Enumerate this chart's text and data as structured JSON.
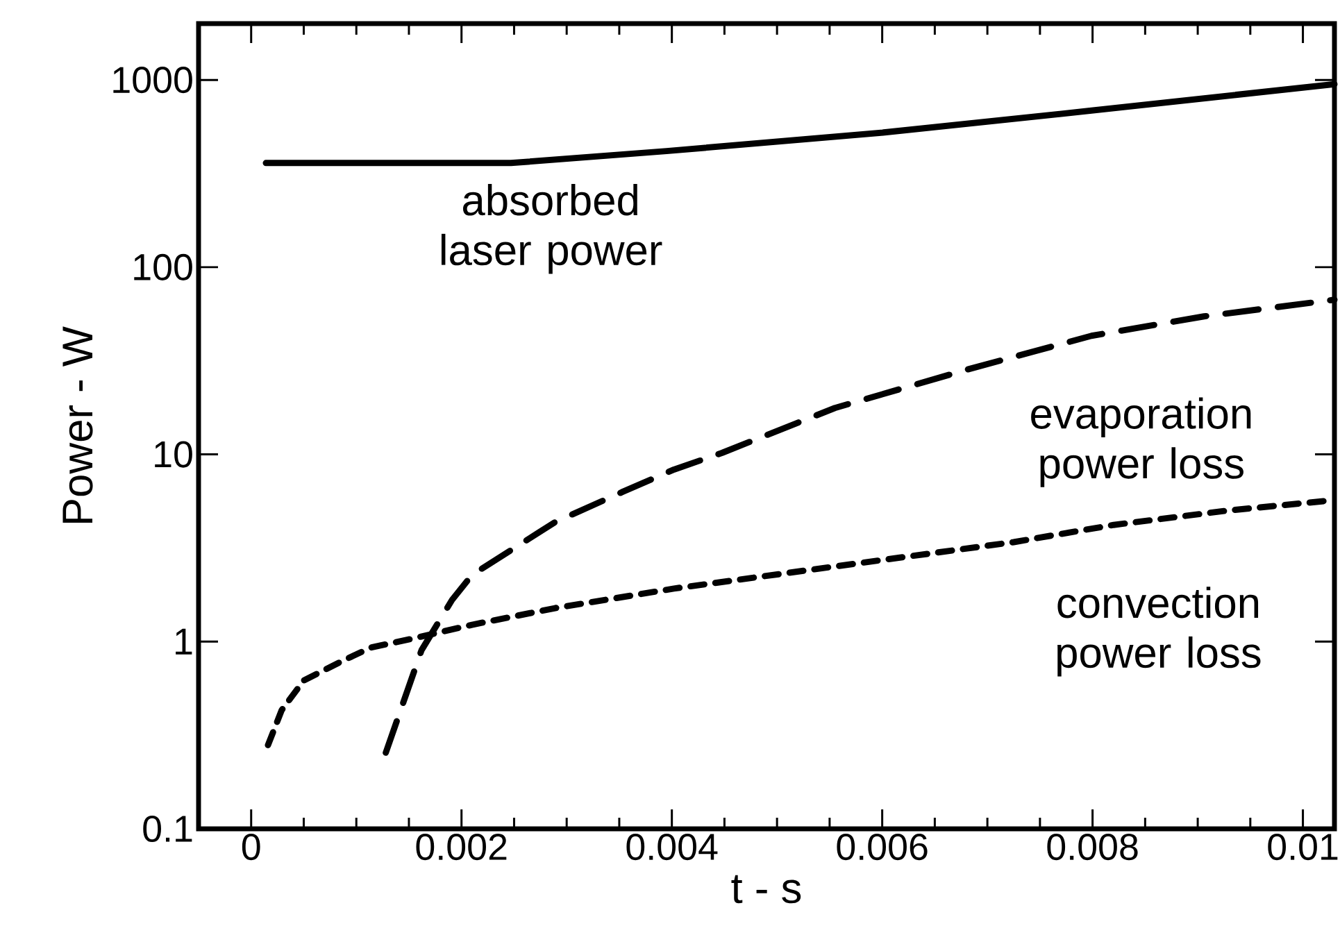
{
  "chart_data": {
    "type": "line",
    "xlabel": "t - s",
    "ylabel": "Power - W",
    "log": "y",
    "xlim": [
      -0.0005,
      0.0103
    ],
    "ylim": [
      0.1,
      2000
    ],
    "xticks": [
      0,
      0.002,
      0.004,
      0.006,
      0.008,
      0.01
    ],
    "yticks": [
      0.1,
      1,
      10,
      100,
      1000
    ],
    "series": [
      {
        "color": "#000000",
        "line_style": "solid",
        "x": [
          0.00014,
          0.00247,
          0.00395,
          0.00597,
          0.00799,
          0.0103
        ],
        "values": [
          360,
          360,
          417,
          521,
          686,
          950
        ]
      },
      {
        "color": "#000000",
        "line_style": "dashed",
        "x": [
          0.00128,
          0.00162,
          0.00191,
          0.0021,
          0.00289,
          0.00353,
          0.00402,
          0.00448,
          0.00555,
          0.00682,
          0.00799,
          0.00906,
          0.0103
        ],
        "values": [
          0.255,
          0.9,
          1.67,
          2.27,
          4.35,
          6.3,
          8.3,
          10.2,
          17.7,
          28.5,
          43,
          54.6,
          67
        ]
      },
      {
        "color": "#000000",
        "line_style": "dotted",
        "x": [
          0.00016,
          0.00029,
          0.0005,
          0.00087,
          0.00114,
          0.00151,
          0.0021,
          0.00289,
          0.00402,
          0.00555,
          0.00725,
          0.0082,
          0.00927,
          0.0103
        ],
        "values": [
          0.28,
          0.43,
          0.62,
          0.79,
          0.93,
          1.03,
          1.23,
          1.51,
          1.92,
          2.52,
          3.4,
          4.2,
          5.0,
          5.7
        ]
      }
    ],
    "annotations": [
      "absorbed laser power",
      "evaporation power loss",
      "convection power loss"
    ]
  }
}
